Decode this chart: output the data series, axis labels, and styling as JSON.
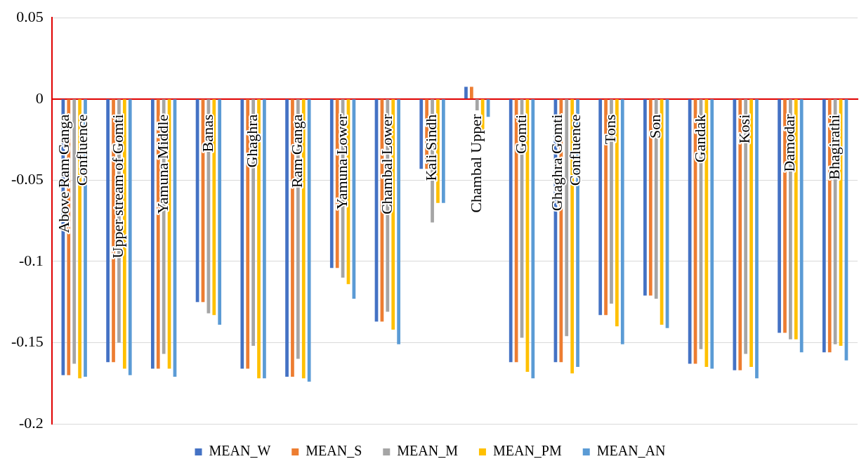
{
  "chart_data": {
    "type": "bar",
    "categories": [
      "Above Ram Ganga Confluence",
      "Upper stream of Gomti",
      "Yamuna Middle",
      "Banas",
      "Ghaghra",
      "Ram Ganga",
      "Yamuna Lower",
      "Chambal Lower",
      "Kali Sindh",
      "Chambal Upper",
      "Gomti",
      "Ghaghra Gomti Confluence",
      "Tons",
      "Son",
      "Gandak",
      "Kosi",
      "Damodar",
      "Bhagirathi"
    ],
    "series": [
      {
        "name": "MEAN_W",
        "color": "#4472c4",
        "values": [
          -0.17,
          -0.162,
          -0.166,
          -0.125,
          -0.166,
          -0.171,
          -0.104,
          -0.137,
          -0.043,
          0.0075,
          -0.162,
          -0.162,
          -0.133,
          -0.121,
          -0.163,
          -0.167,
          -0.144,
          -0.156
        ]
      },
      {
        "name": "MEAN_S",
        "color": "#ed7d31",
        "values": [
          -0.17,
          -0.162,
          -0.166,
          -0.125,
          -0.166,
          -0.171,
          -0.104,
          -0.137,
          -0.043,
          0.0075,
          -0.162,
          -0.162,
          -0.133,
          -0.121,
          -0.163,
          -0.167,
          -0.144,
          -0.156
        ]
      },
      {
        "name": "MEAN_M",
        "color": "#a5a5a5",
        "values": [
          -0.163,
          -0.15,
          -0.157,
          -0.132,
          -0.152,
          -0.16,
          -0.11,
          -0.131,
          -0.076,
          -0.007,
          -0.147,
          -0.146,
          -0.126,
          -0.123,
          -0.154,
          -0.157,
          -0.148,
          -0.151
        ]
      },
      {
        "name": "MEAN_PM",
        "color": "#ffc000",
        "values": [
          -0.172,
          -0.166,
          -0.166,
          -0.133,
          -0.172,
          -0.172,
          -0.114,
          -0.142,
          -0.064,
          -0.019,
          -0.168,
          -0.169,
          -0.14,
          -0.139,
          -0.165,
          -0.165,
          -0.148,
          -0.152
        ]
      },
      {
        "name": "MEAN_AN",
        "color": "#5b9bd5",
        "values": [
          -0.171,
          -0.17,
          -0.171,
          -0.139,
          -0.172,
          -0.174,
          -0.123,
          -0.151,
          -0.064,
          -0.011,
          -0.172,
          -0.165,
          -0.151,
          -0.141,
          -0.166,
          -0.172,
          -0.156,
          -0.161
        ]
      }
    ],
    "ylim": [
      -0.2,
      0.05
    ],
    "yticks": [
      -0.2,
      -0.15,
      -0.1,
      -0.05,
      0,
      0.05
    ],
    "grid": "y",
    "legend": "bottom"
  }
}
